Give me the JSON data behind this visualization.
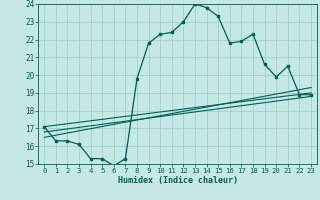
{
  "title": "",
  "xlabel": "Humidex (Indice chaleur)",
  "ylabel": "",
  "xlim": [
    -0.5,
    23.5
  ],
  "ylim": [
    15,
    24
  ],
  "yticks": [
    15,
    16,
    17,
    18,
    19,
    20,
    21,
    22,
    23,
    24
  ],
  "xticks": [
    0,
    1,
    2,
    3,
    4,
    5,
    6,
    7,
    8,
    9,
    10,
    11,
    12,
    13,
    14,
    15,
    16,
    17,
    18,
    19,
    20,
    21,
    22,
    23
  ],
  "bg_color": "#c5e8e4",
  "grid_color": "#9ecfcb",
  "line_color": "#005f5a",
  "main_series_x": [
    0,
    1,
    2,
    3,
    4,
    5,
    6,
    7,
    8,
    9,
    10,
    11,
    12,
    13,
    14,
    15,
    16,
    17,
    18,
    19,
    20,
    21,
    22,
    23
  ],
  "main_series_y": [
    17.1,
    16.3,
    16.3,
    16.1,
    15.3,
    15.3,
    14.9,
    15.3,
    19.8,
    21.8,
    22.3,
    22.4,
    23.0,
    24.0,
    23.8,
    23.3,
    21.8,
    21.9,
    22.3,
    20.6,
    19.9,
    20.5,
    18.9,
    18.9
  ],
  "line1_x": [
    0,
    23
  ],
  "line1_y": [
    16.5,
    19.3
  ],
  "line2_x": [
    0,
    23
  ],
  "line2_y": [
    16.8,
    18.8
  ],
  "line3_x": [
    0,
    23
  ],
  "line3_y": [
    17.1,
    19.0
  ]
}
